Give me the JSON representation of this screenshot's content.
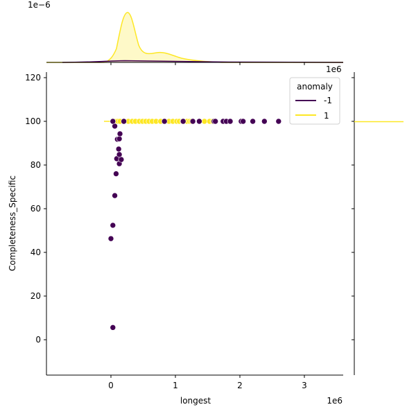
{
  "chart_data": {
    "type": "scatter",
    "kind": "jointplot",
    "xlabel": "longest",
    "ylabel": "Completeness_Specific",
    "x_offset_text": "1e6",
    "top_marginal_offset_text": "1e−6",
    "right_marginal_offset_text": "1e6",
    "xlim": [
      -1000000,
      3600000
    ],
    "ylim": [
      -16,
      122
    ],
    "x_ticks": [
      0,
      1000000,
      2000000,
      3000000
    ],
    "x_tick_labels": [
      "0",
      "1",
      "2",
      "3"
    ],
    "y_ticks": [
      0,
      20,
      40,
      60,
      80,
      100,
      120
    ],
    "y_tick_labels": [
      "0",
      "20",
      "40",
      "60",
      "80",
      "100",
      "120"
    ],
    "grid": false,
    "legend": {
      "title": "anomaly",
      "position": "upper right",
      "entries": [
        {
          "label": "-1",
          "color": "#440154"
        },
        {
          "label": "1",
          "color": "#fde725"
        }
      ]
    },
    "series": [
      {
        "name": "-1",
        "color": "#440154",
        "points": [
          [
            30000,
            5.6
          ],
          [
            0,
            46.3
          ],
          [
            30000,
            52.4
          ],
          [
            60000,
            66
          ],
          [
            80000,
            76
          ],
          [
            130000,
            80.6
          ],
          [
            90000,
            82.9
          ],
          [
            160000,
            82.5
          ],
          [
            130000,
            84.8
          ],
          [
            120000,
            87.3
          ],
          [
            100000,
            91.8
          ],
          [
            130000,
            92
          ],
          [
            140000,
            94.3
          ],
          [
            60000,
            97.8
          ],
          [
            30000,
            100
          ],
          [
            200000,
            100
          ],
          [
            830000,
            100
          ],
          [
            1120000,
            100
          ],
          [
            1270000,
            100
          ],
          [
            1370000,
            100
          ],
          [
            1600000,
            100
          ],
          [
            1620000,
            100
          ],
          [
            1740000,
            100
          ],
          [
            1790000,
            100
          ],
          [
            1850000,
            100
          ],
          [
            2020000,
            100
          ],
          [
            2050000,
            100
          ],
          [
            2200000,
            100
          ],
          [
            2380000,
            100
          ],
          [
            2600000,
            100
          ]
        ]
      },
      {
        "name": "1",
        "color": "#fde725",
        "points": [
          [
            60000,
            100
          ],
          [
            90000,
            100
          ],
          [
            110000,
            100
          ],
          [
            140000,
            100
          ],
          [
            270000,
            100
          ],
          [
            330000,
            100
          ],
          [
            380000,
            100
          ],
          [
            440000,
            100
          ],
          [
            490000,
            100
          ],
          [
            540000,
            100
          ],
          [
            590000,
            100
          ],
          [
            640000,
            100
          ],
          [
            700000,
            100
          ],
          [
            770000,
            100
          ],
          [
            900000,
            100
          ],
          [
            960000,
            100
          ],
          [
            1020000,
            100
          ],
          [
            1060000,
            100
          ],
          [
            1110000,
            100
          ],
          [
            1180000,
            100
          ],
          [
            1220000,
            100
          ],
          [
            1250000,
            100
          ],
          [
            1450000,
            100
          ],
          [
            1530000,
            100
          ],
          [
            1580000,
            100
          ]
        ]
      }
    ],
    "marginal_x_kde": {
      "series": [
        {
          "name": "1",
          "color": "#fde725",
          "peaks": [
            {
              "x": 250000,
              "density_rel": 1.0
            },
            {
              "x": 800000,
              "density_rel": 0.19
            }
          ]
        },
        {
          "name": "-1",
          "color": "#440154",
          "peaks": [
            {
              "x": 200000,
              "density_rel": 0.03
            }
          ]
        }
      ]
    },
    "marginal_y_kde": {
      "series": [
        {
          "name": "1",
          "color": "#fde725",
          "note": "degenerate spike at 100"
        }
      ]
    }
  }
}
